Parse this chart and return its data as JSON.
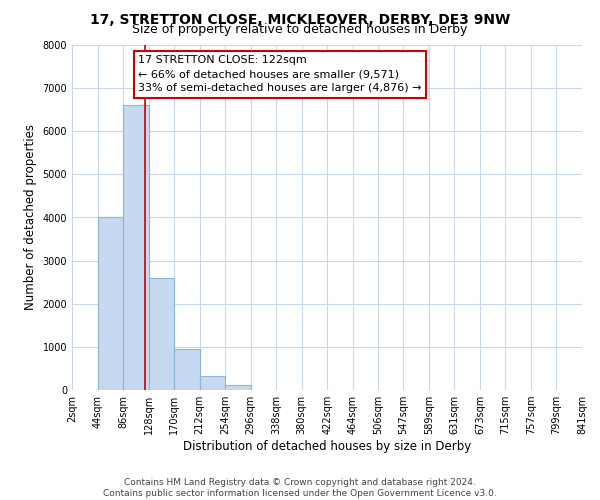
{
  "title": "17, STRETTON CLOSE, MICKLEOVER, DERBY, DE3 9NW",
  "subtitle": "Size of property relative to detached houses in Derby",
  "xlabel": "Distribution of detached houses by size in Derby",
  "ylabel": "Number of detached properties",
  "bin_edges": [
    2,
    44,
    86,
    128,
    170,
    212,
    254,
    296,
    338,
    380,
    422,
    464,
    506,
    547,
    589,
    631,
    673,
    715,
    757,
    799,
    841
  ],
  "bar_heights": [
    0,
    4000,
    6600,
    2600,
    950,
    320,
    110,
    0,
    0,
    0,
    0,
    0,
    0,
    0,
    0,
    0,
    0,
    0,
    0,
    0
  ],
  "bar_color": "#c6d9f0",
  "bar_edge_color": "#8eb4d4",
  "vline_x": 122,
  "vline_color": "#cc0000",
  "annotation_text": "17 STRETTON CLOSE: 122sqm\n← 66% of detached houses are smaller (9,571)\n33% of semi-detached houses are larger (4,876) →",
  "annotation_box_color": "#ffffff",
  "annotation_box_edge_color": "#cc0000",
  "ylim": [
    0,
    8000
  ],
  "yticks": [
    0,
    1000,
    2000,
    3000,
    4000,
    5000,
    6000,
    7000,
    8000
  ],
  "tick_labels": [
    "2sqm",
    "44sqm",
    "86sqm",
    "128sqm",
    "170sqm",
    "212sqm",
    "254sqm",
    "296sqm",
    "338sqm",
    "380sqm",
    "422sqm",
    "464sqm",
    "506sqm",
    "547sqm",
    "589sqm",
    "631sqm",
    "673sqm",
    "715sqm",
    "757sqm",
    "799sqm",
    "841sqm"
  ],
  "footer": "Contains HM Land Registry data © Crown copyright and database right 2024.\nContains public sector information licensed under the Open Government Licence v3.0.",
  "bg_color": "#ffffff",
  "grid_color": "#c8d8e8",
  "title_fontsize": 10,
  "subtitle_fontsize": 9,
  "axis_label_fontsize": 8.5,
  "tick_fontsize": 7,
  "footer_fontsize": 6.5,
  "annot_fontsize": 8
}
